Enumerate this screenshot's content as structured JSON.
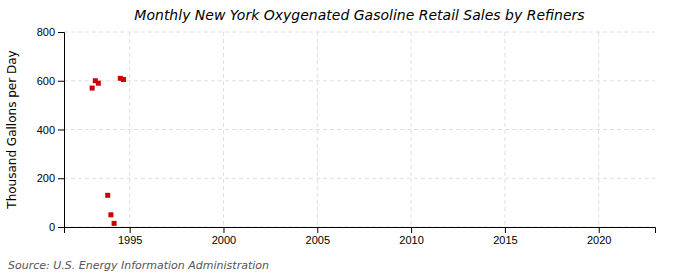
{
  "chart_data": {
    "type": "scatter",
    "title": "Monthly New York Oxygenated Gasoline Retail Sales by Refiners",
    "y_label": "Thousand Gallons per Day",
    "annotations": [
      "Source: U.S. Energy Information Administration"
    ],
    "x": [
      1993.0,
      1993.17,
      1993.33,
      1994.5,
      1994.67,
      1993.83,
      1994.0,
      1994.17
    ],
    "values": [
      570,
      600,
      590,
      610,
      605,
      130,
      50,
      15
    ],
    "color": "#cc0000",
    "marker": "square",
    "xlim": [
      1991.5,
      2023
    ],
    "ylim": [
      0,
      800
    ],
    "xticks": [
      1995,
      2000,
      2005,
      2010,
      2015,
      2020
    ],
    "yticks": [
      0,
      200,
      400,
      600,
      800
    ],
    "grid": true
  }
}
